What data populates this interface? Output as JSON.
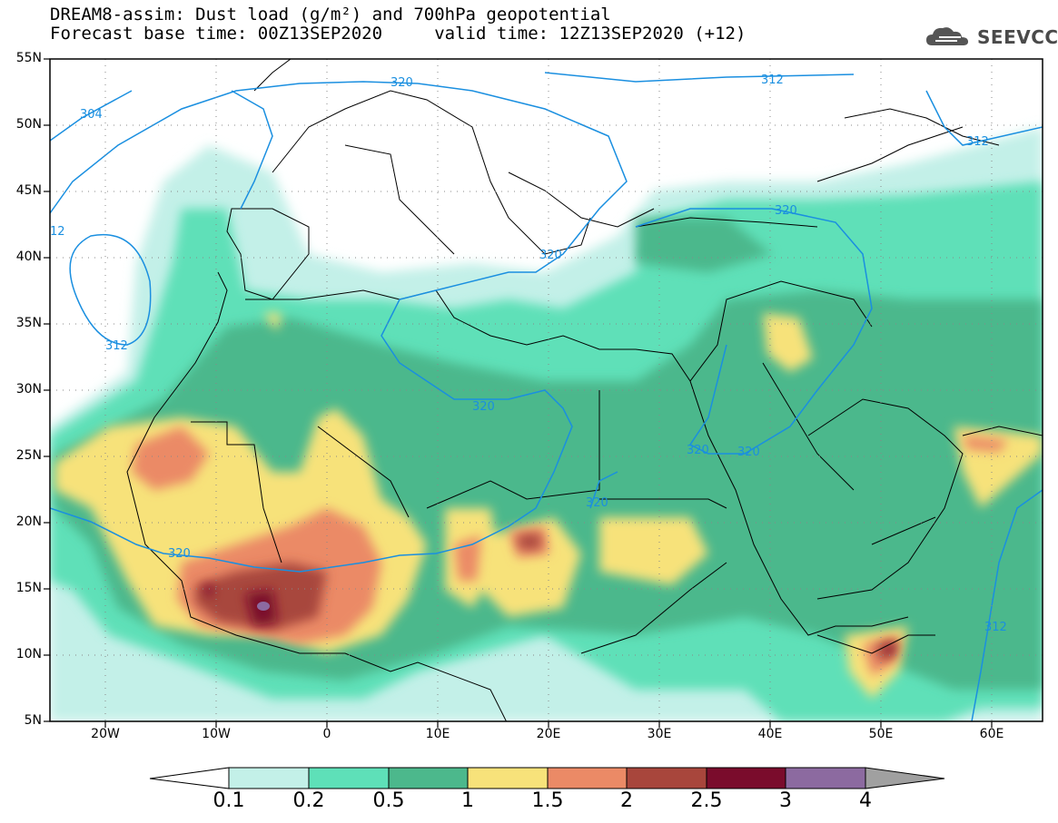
{
  "title": {
    "line1": "DREAM8-assim: Dust load (g/m²) and 700hPa geopotential",
    "line2": "Forecast base time: 00Z13SEP2020     valid time: 12Z13SEP2020 (+12)"
  },
  "logo": {
    "text": "SEEVCCC",
    "icon": "cloud-logo-icon"
  },
  "map": {
    "lat_labels": [
      "55N",
      "50N",
      "45N",
      "40N",
      "35N",
      "30N",
      "25N",
      "20N",
      "15N",
      "10N",
      "5N"
    ],
    "lon_labels": [
      "20W",
      "10W",
      "0",
      "10E",
      "20E",
      "30E",
      "40E",
      "50E",
      "60E"
    ],
    "contour_labels": [
      "304",
      "320",
      "312",
      "312",
      "12",
      "320",
      "312",
      "320",
      "320",
      "320",
      "320",
      "320",
      "320",
      "312"
    ]
  },
  "colorbar": {
    "labels": [
      "0.1",
      "0.2",
      "0.5",
      "1",
      "1.5",
      "2",
      "2.5",
      "3",
      "4"
    ],
    "colors": [
      "#c3f0e8",
      "#5ee0b8",
      "#4cb88c",
      "#f7e27a",
      "#eb8a66",
      "#a8463c",
      "#7a0c2c",
      "#8c6aa0",
      "#a0a0a0"
    ]
  }
}
